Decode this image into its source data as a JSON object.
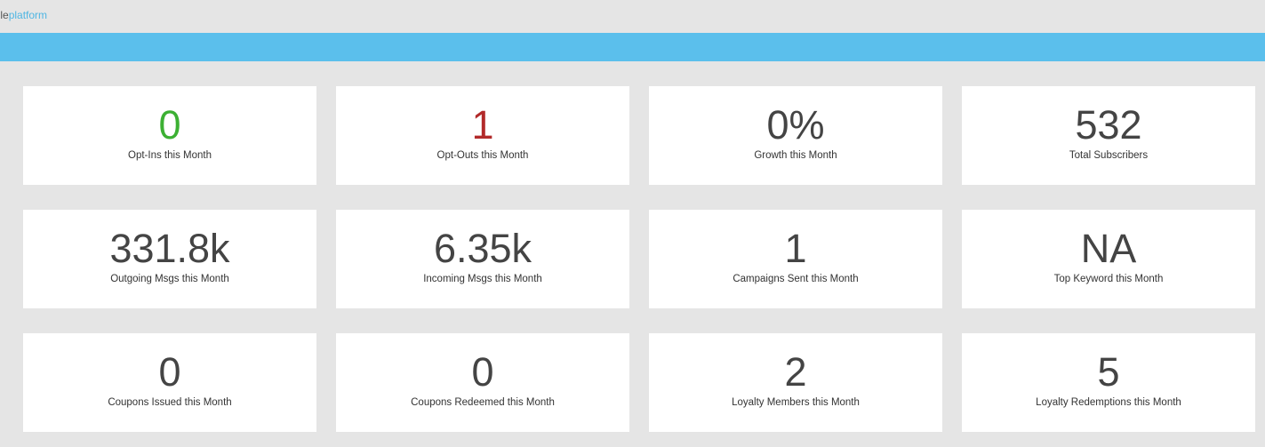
{
  "header": {
    "brand_prefix": "bile",
    "brand_accent": "platform"
  },
  "colors": {
    "accent_bar": "#5bbfec",
    "positive": "#3cb033",
    "negative": "#b22a2a",
    "neutral": "#444444"
  },
  "stats": [
    {
      "value": "0",
      "label": "Opt-Ins this Month",
      "color": "#3cb033"
    },
    {
      "value": "1",
      "label": "Opt-Outs this Month",
      "color": "#b22a2a"
    },
    {
      "value": "0%",
      "label": "Growth this Month",
      "color": "#444444"
    },
    {
      "value": "532",
      "label": "Total Subscribers",
      "color": "#444444"
    },
    {
      "value": "331.8k",
      "label": "Outgoing Msgs this Month",
      "color": "#444444"
    },
    {
      "value": "6.35k",
      "label": "Incoming Msgs this Month",
      "color": "#444444"
    },
    {
      "value": "1",
      "label": "Campaigns Sent this Month",
      "color": "#444444"
    },
    {
      "value": "NA",
      "label": "Top Keyword this Month",
      "color": "#444444"
    },
    {
      "value": "0",
      "label": "Coupons Issued this Month",
      "color": "#444444"
    },
    {
      "value": "0",
      "label": "Coupons Redeemed this Month",
      "color": "#444444"
    },
    {
      "value": "2",
      "label": "Loyalty Members this Month",
      "color": "#444444"
    },
    {
      "value": "5",
      "label": "Loyalty Redemptions this Month",
      "color": "#444444"
    }
  ]
}
